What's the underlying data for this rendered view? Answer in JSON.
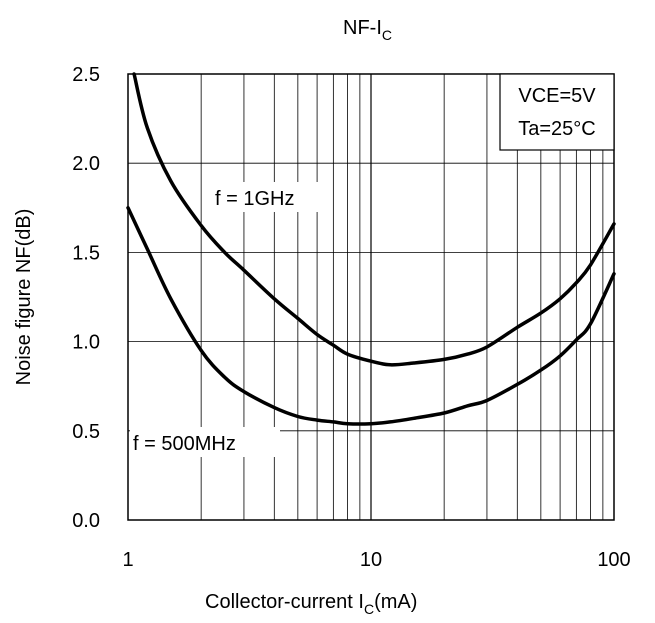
{
  "chart_data": {
    "type": "line",
    "title": {
      "main": "NF-I",
      "sub": "C"
    },
    "xlabel": {
      "pre": "Collector-current I",
      "sub": "C",
      "post": "(mA)"
    },
    "ylabel": "Noise figure NF(dB)",
    "x_scale": "log",
    "xlim": [
      1,
      100
    ],
    "ylim": [
      0,
      2.5
    ],
    "x_ticks": [
      1,
      10,
      100
    ],
    "x_tick_labels": [
      "1",
      "10",
      "100"
    ],
    "y_ticks": [
      0,
      0.5,
      1.0,
      1.5,
      2.0,
      2.5
    ],
    "y_tick_labels": [
      "0.0",
      "0.5",
      "1.0",
      "1.5",
      "2.0",
      "2.5"
    ],
    "grid": true,
    "conditions": [
      "VCE=5V",
      "Ta=25°C"
    ],
    "series": [
      {
        "name": "f = 1GHz",
        "x": [
          1.06,
          1.2,
          1.5,
          2,
          2.5,
          3,
          4,
          5,
          6,
          7,
          8,
          10,
          12,
          15,
          20,
          25,
          30,
          40,
          50,
          60,
          70,
          80,
          100
        ],
        "y": [
          2.5,
          2.2,
          1.9,
          1.65,
          1.5,
          1.4,
          1.24,
          1.13,
          1.04,
          0.98,
          0.93,
          0.89,
          0.87,
          0.88,
          0.9,
          0.93,
          0.97,
          1.08,
          1.16,
          1.24,
          1.33,
          1.43,
          1.66
        ]
      },
      {
        "name": "f = 500MHz",
        "x": [
          1,
          1.2,
          1.5,
          2,
          2.5,
          3,
          4,
          5,
          6,
          7,
          8,
          10,
          12,
          15,
          20,
          25,
          30,
          40,
          50,
          60,
          70,
          80,
          100
        ],
        "y": [
          1.75,
          1.52,
          1.24,
          0.95,
          0.8,
          0.72,
          0.63,
          0.58,
          0.56,
          0.55,
          0.54,
          0.54,
          0.55,
          0.57,
          0.6,
          0.64,
          0.67,
          0.76,
          0.84,
          0.92,
          1.01,
          1.1,
          1.38
        ]
      }
    ]
  }
}
